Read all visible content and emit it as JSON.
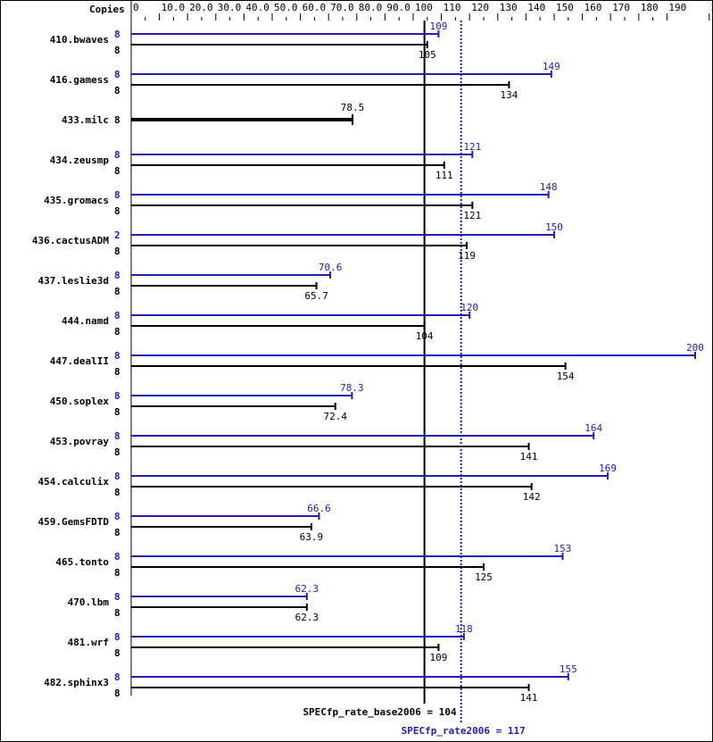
{
  "chart_data": {
    "type": "bar",
    "orientation": "horizontal",
    "copies_header": "Copies",
    "xlim": [
      0,
      205
    ],
    "ticks": [
      "0",
      "10.0",
      "20.0",
      "30.0",
      "40.0",
      "50.0",
      "60.0",
      "70.0",
      "80.0",
      "90.0",
      "100",
      "110",
      "120",
      "130",
      "140",
      "150",
      "160",
      "170",
      "180",
      "190",
      "205"
    ],
    "tick_values": [
      0,
      10,
      20,
      30,
      40,
      50,
      60,
      70,
      80,
      90,
      100,
      110,
      120,
      130,
      140,
      150,
      160,
      170,
      180,
      190,
      205
    ],
    "colors": {
      "base": "#000000",
      "peak": "#2020b0"
    },
    "benchmarks": [
      {
        "name": "410.bwaves",
        "peak_copies": "8",
        "peak": 109,
        "peak_label": "109",
        "base_copies": "8",
        "base": 105,
        "base_label": "105"
      },
      {
        "name": "416.gamess",
        "peak_copies": "8",
        "peak": 149,
        "peak_label": "149",
        "base_copies": "8",
        "base": 134,
        "base_label": "134"
      },
      {
        "name": "433.milc",
        "base_copies": "8",
        "base": 78.5,
        "base_label": "78.5"
      },
      {
        "name": "434.zeusmp",
        "peak_copies": "8",
        "peak": 121,
        "peak_label": "121",
        "base_copies": "8",
        "base": 111,
        "base_label": "111"
      },
      {
        "name": "435.gromacs",
        "peak_copies": "8",
        "peak": 148,
        "peak_label": "148",
        "base_copies": "8",
        "base": 121,
        "base_label": "121"
      },
      {
        "name": "436.cactusADM",
        "peak_copies": "2",
        "peak": 150,
        "peak_label": "150",
        "base_copies": "8",
        "base": 119,
        "base_label": "119"
      },
      {
        "name": "437.leslie3d",
        "peak_copies": "8",
        "peak": 70.6,
        "peak_label": "70.6",
        "base_copies": "8",
        "base": 65.7,
        "base_label": "65.7"
      },
      {
        "name": "444.namd",
        "peak_copies": "8",
        "peak": 120,
        "peak_label": "120",
        "base_copies": "8",
        "base": 104,
        "base_label": "104"
      },
      {
        "name": "447.dealII",
        "peak_copies": "8",
        "peak": 200,
        "peak_label": "200",
        "base_copies": "8",
        "base": 154,
        "base_label": "154"
      },
      {
        "name": "450.soplex",
        "peak_copies": "8",
        "peak": 78.3,
        "peak_label": "78.3",
        "base_copies": "8",
        "base": 72.4,
        "base_label": "72.4"
      },
      {
        "name": "453.povray",
        "peak_copies": "8",
        "peak": 164,
        "peak_label": "164",
        "base_copies": "8",
        "base": 141,
        "base_label": "141"
      },
      {
        "name": "454.calculix",
        "peak_copies": "8",
        "peak": 169,
        "peak_label": "169",
        "base_copies": "8",
        "base": 142,
        "base_label": "142"
      },
      {
        "name": "459.GemsFDTD",
        "peak_copies": "8",
        "peak": 66.6,
        "peak_label": "66.6",
        "base_copies": "8",
        "base": 63.9,
        "base_label": "63.9"
      },
      {
        "name": "465.tonto",
        "peak_copies": "8",
        "peak": 153,
        "peak_label": "153",
        "base_copies": "8",
        "base": 125,
        "base_label": "125"
      },
      {
        "name": "470.lbm",
        "peak_copies": "8",
        "peak": 62.3,
        "peak_label": "62.3",
        "base_copies": "8",
        "base": 62.3,
        "base_label": "62.3"
      },
      {
        "name": "481.wrf",
        "peak_copies": "8",
        "peak": 118,
        "peak_label": "118",
        "base_copies": "8",
        "base": 109,
        "base_label": "109"
      },
      {
        "name": "482.sphinx3",
        "peak_copies": "8",
        "peak": 155,
        "peak_label": "155",
        "base_copies": "8",
        "base": 141,
        "base_label": "141"
      }
    ],
    "base_mean": {
      "value": 104,
      "label": "SPECfp_rate_base2006 = 104"
    },
    "peak_mean": {
      "value": 117,
      "label": "SPECfp_rate2006 = 117"
    }
  }
}
